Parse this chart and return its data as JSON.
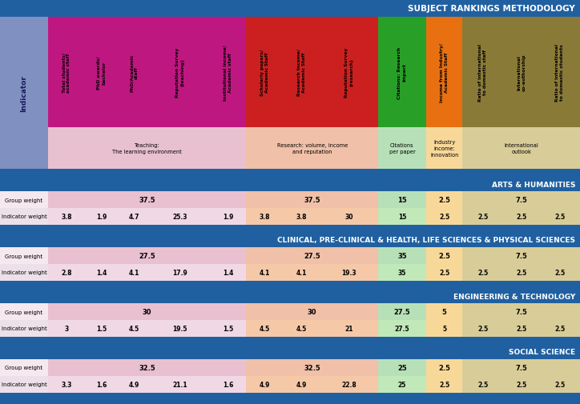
{
  "title": "SUBJECT RANKINGS METHODOLOGY",
  "title_bg": "#2060a0",
  "title_color": "white",
  "header_divider_bg": "#2060a0",
  "col_groups": [
    {
      "name": "Teaching:\nThe learning environment",
      "cols": [
        0,
        1,
        2,
        3,
        4
      ],
      "sub_bg": "#e8c0d0",
      "header_bg": "#bf1780"
    },
    {
      "name": "Research: volume, income\nand reputation",
      "cols": [
        5,
        6,
        7
      ],
      "sub_bg": "#f0c0a8",
      "header_bg": "#cc2020"
    },
    {
      "name": "Citations\nper paper",
      "cols": [
        8
      ],
      "sub_bg": "#b8e0b8",
      "header_bg": "#28a028"
    },
    {
      "name": "Industry\nincome:\ninnovation",
      "cols": [
        9
      ],
      "sub_bg": "#f8d898",
      "header_bg": "#e87010"
    },
    {
      "name": "International\noutlook",
      "cols": [
        10,
        11,
        12
      ],
      "sub_bg": "#d8cc98",
      "header_bg": "#8a7a38"
    }
  ],
  "col_headers": [
    "Total students/\nacademic staff",
    "PhD awards/\nbachelor",
    "PhD/Academic\nstaff",
    "Reputation Survey\n(teaching)",
    "Institutional income/\nAcademic staff",
    "Scholarly papers/\nAcademic Staff",
    "Research Income/\nAcademic Staff",
    "Reputation Survey\n(research)",
    "Citations: Research\nimpact",
    "Income from Industry/\nAcademic Staff",
    "Ratio of international\nto domestic staff",
    "International\nco-authorship",
    "Ratio of international\nto domestic students"
  ],
  "col_header_bgs": [
    "#bf1780",
    "#bf1780",
    "#bf1780",
    "#bf1780",
    "#bf1780",
    "#cc2020",
    "#cc2020",
    "#cc2020",
    "#28a028",
    "#e87010",
    "#8a7a38",
    "#8a7a38",
    "#8a7a38"
  ],
  "col_header_text_colors": [
    "black",
    "black",
    "black",
    "black",
    "black",
    "black",
    "black",
    "black",
    "black",
    "black",
    "black",
    "black",
    "black"
  ],
  "indicator_bg": "#8090c0",
  "indicator_text_color": "#1a1a5a",
  "col_bgs": [
    "#f0d8e5",
    "#f0d8e5",
    "#f0d8e5",
    "#f0d8e5",
    "#f0d8e5",
    "#f5c8a8",
    "#f5c8a8",
    "#f5c8a8",
    "#c0e8b8",
    "#f8d898",
    "#d8cc98",
    "#d8cc98",
    "#d8cc98"
  ],
  "group_weight_row_bg_left": "#f5e8ee",
  "indicator_weight_row_bg_left": "#ede0e8",
  "sections": [
    {
      "name": "ARTS & HUMANITIES",
      "name_bg": "#2060a0",
      "name_color": "white",
      "group_weight_spans": [
        {
          "cols": [
            0,
            4
          ],
          "value": "37.5"
        },
        {
          "cols": [
            5,
            7
          ],
          "value": "37.5"
        },
        {
          "cols": [
            8,
            8
          ],
          "value": "15"
        },
        {
          "cols": [
            9,
            9
          ],
          "value": "2.5"
        },
        {
          "cols": [
            10,
            12
          ],
          "value": "7.5"
        }
      ],
      "indicator_weights": [
        3.8,
        1.9,
        4.7,
        25.3,
        1.9,
        3.8,
        3.8,
        30,
        15,
        2.5,
        2.5,
        2.5,
        2.5
      ]
    },
    {
      "name": "CLINICAL, PRE-CLINICAL & HEALTH, LIFE SCIENCES & PHYSICAL SCIENCES",
      "name_bg": "#2060a0",
      "name_color": "white",
      "group_weight_spans": [
        {
          "cols": [
            0,
            4
          ],
          "value": "27.5"
        },
        {
          "cols": [
            5,
            7
          ],
          "value": "27.5"
        },
        {
          "cols": [
            8,
            8
          ],
          "value": "35"
        },
        {
          "cols": [
            9,
            9
          ],
          "value": "2.5"
        },
        {
          "cols": [
            10,
            12
          ],
          "value": "7.5"
        }
      ],
      "indicator_weights": [
        2.8,
        1.4,
        4.1,
        17.9,
        1.4,
        4.1,
        4.1,
        19.3,
        35,
        2.5,
        2.5,
        2.5,
        2.5
      ]
    },
    {
      "name": "ENGINEERING & TECHNOLOGY",
      "name_bg": "#2060a0",
      "name_color": "white",
      "group_weight_spans": [
        {
          "cols": [
            0,
            4
          ],
          "value": "30"
        },
        {
          "cols": [
            5,
            7
          ],
          "value": "30"
        },
        {
          "cols": [
            8,
            8
          ],
          "value": "27.5"
        },
        {
          "cols": [
            9,
            9
          ],
          "value": "5"
        },
        {
          "cols": [
            10,
            12
          ],
          "value": "7.5"
        }
      ],
      "indicator_weights": [
        3.0,
        1.5,
        4.5,
        19.5,
        1.5,
        4.5,
        4.5,
        21,
        27.5,
        5,
        2.5,
        2.5,
        2.5
      ]
    },
    {
      "name": "SOCIAL SCIENCE",
      "name_bg": "#2060a0",
      "name_color": "white",
      "group_weight_spans": [
        {
          "cols": [
            0,
            4
          ],
          "value": "32.5"
        },
        {
          "cols": [
            5,
            7
          ],
          "value": "32.5"
        },
        {
          "cols": [
            8,
            8
          ],
          "value": "25"
        },
        {
          "cols": [
            9,
            9
          ],
          "value": "2.5"
        },
        {
          "cols": [
            10,
            12
          ],
          "value": "7.5"
        }
      ],
      "indicator_weights": [
        3.3,
        1.6,
        4.9,
        21.1,
        1.6,
        4.9,
        4.9,
        22.8,
        25,
        2.5,
        2.5,
        2.5,
        2.5
      ]
    }
  ],
  "n_cols": 13,
  "col_rel_widths": [
    1.0,
    0.9,
    0.9,
    1.6,
    1.0,
    1.0,
    1.0,
    1.6,
    1.3,
    1.0,
    1.1,
    1.0,
    1.1
  ]
}
